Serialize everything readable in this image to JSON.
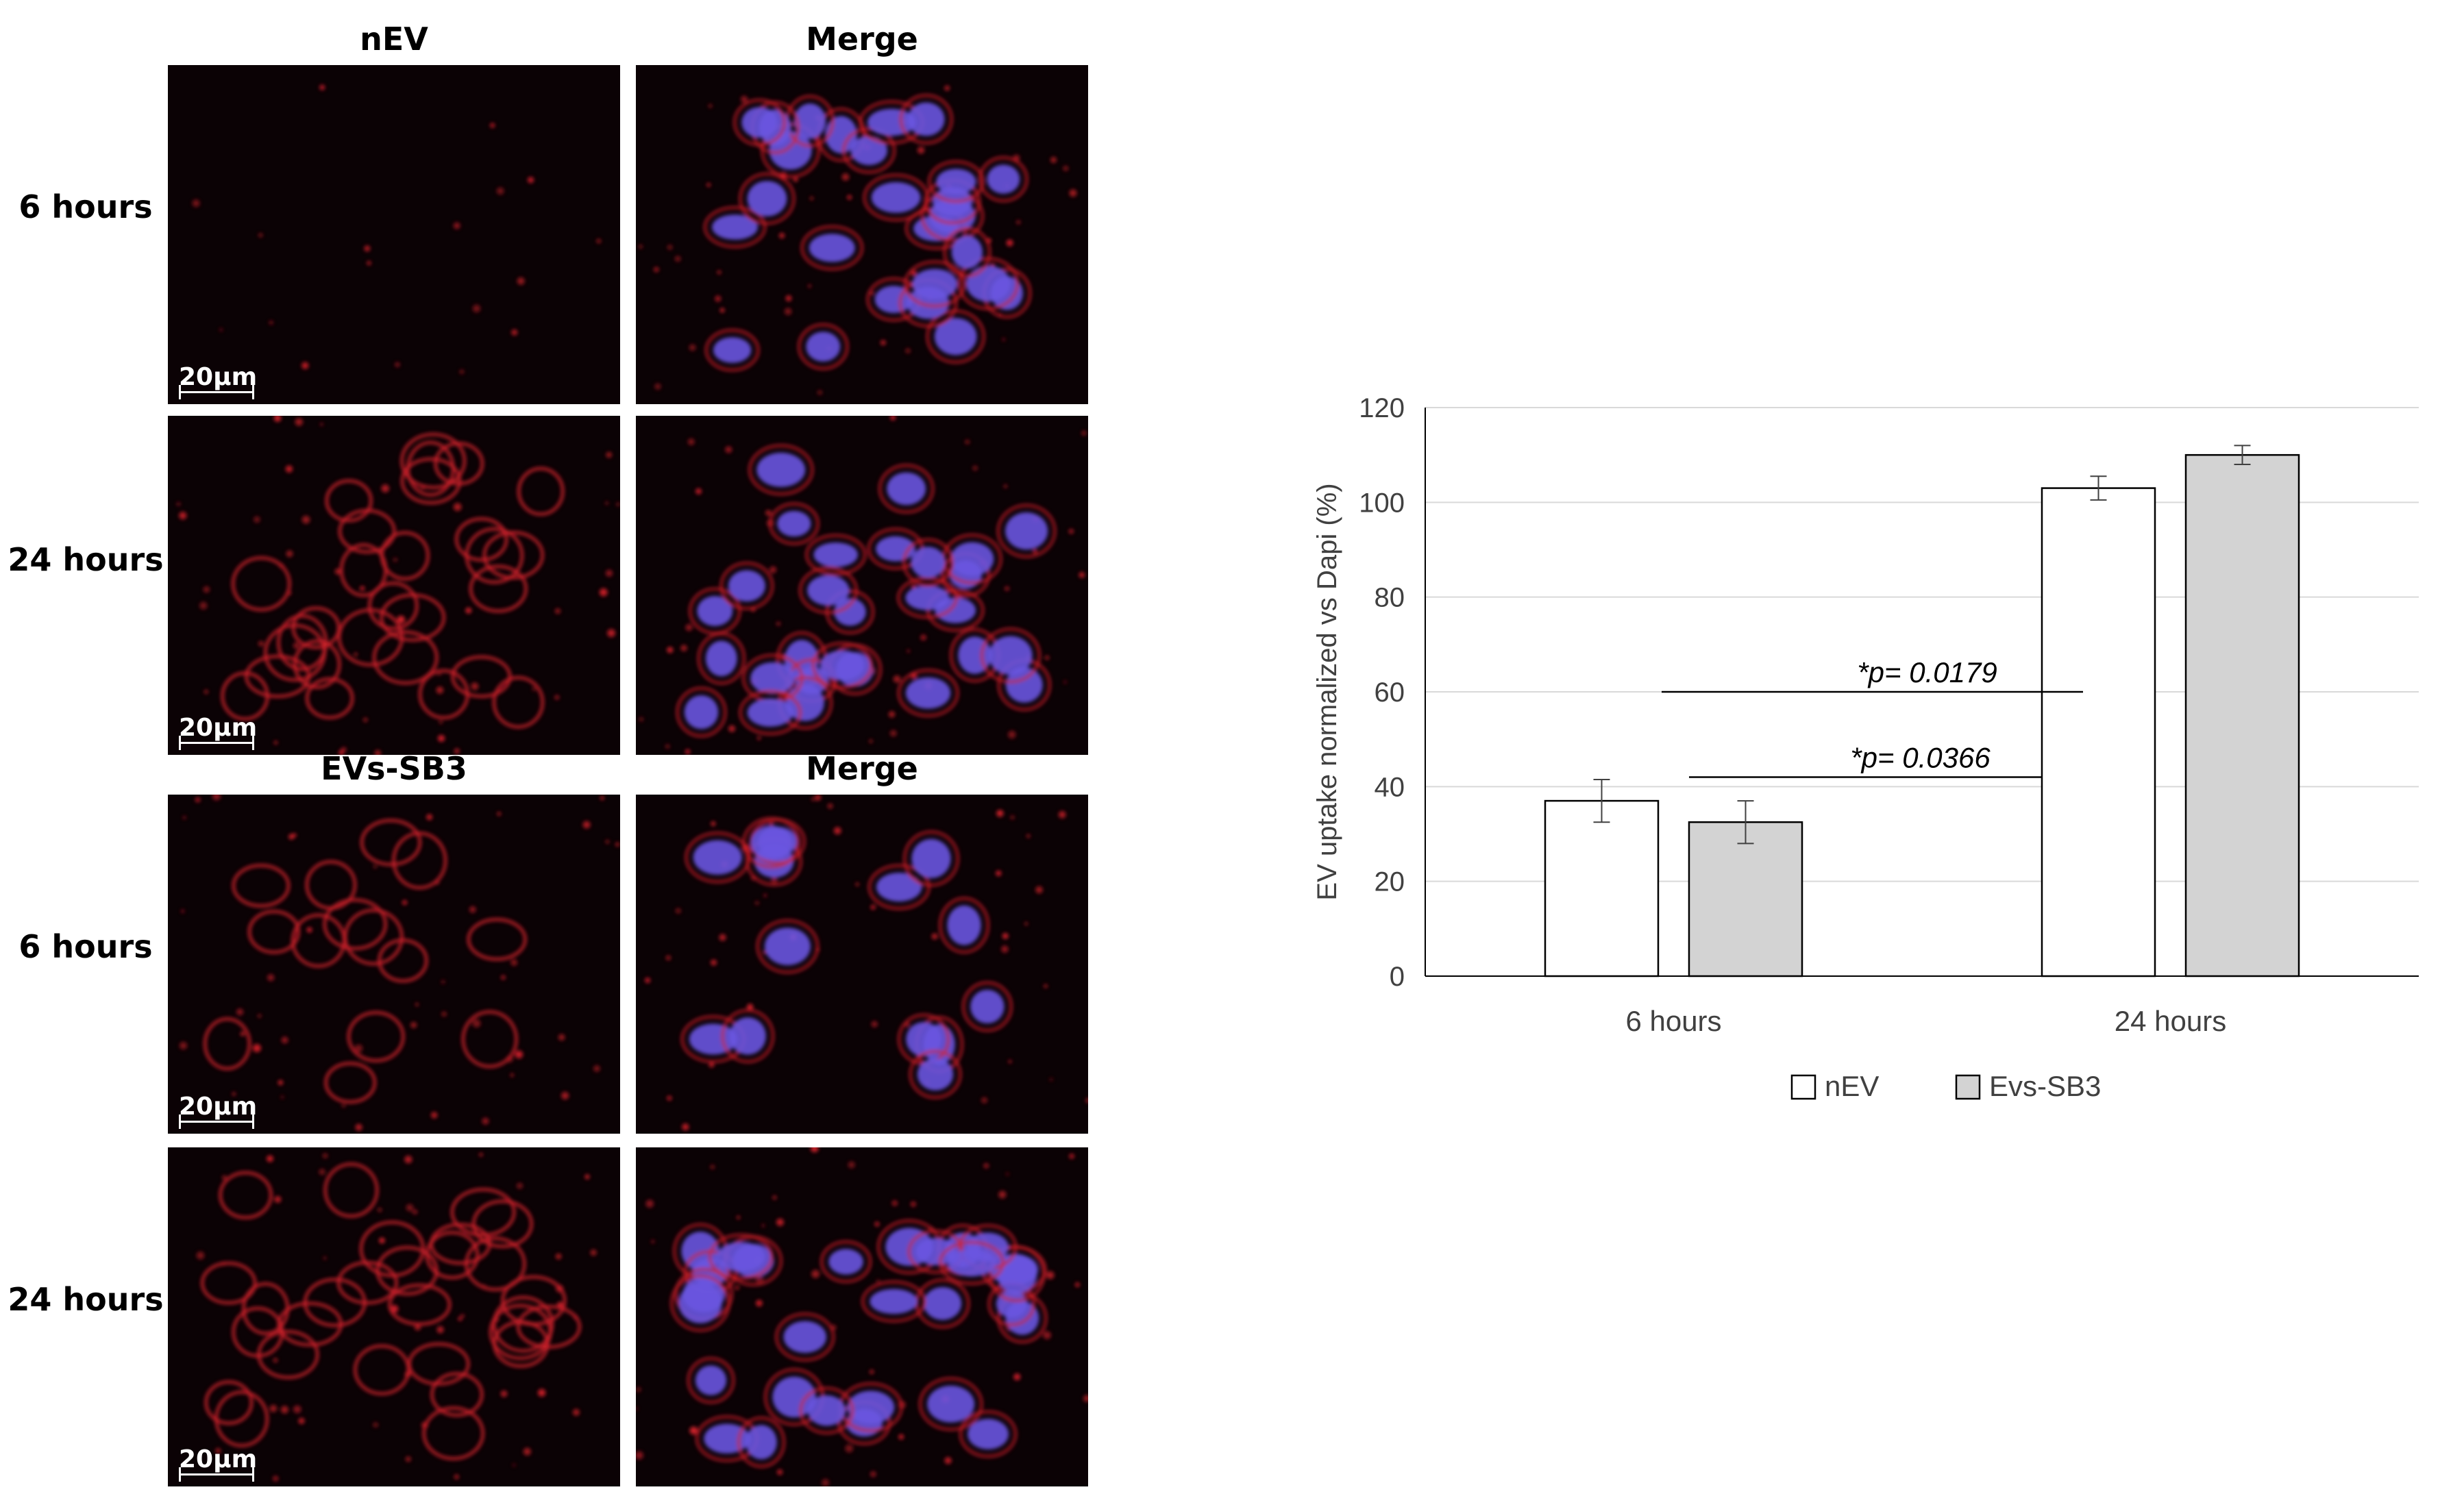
{
  "micrographs": {
    "group1": {
      "col1_title": "nEV",
      "col2_title": "Merge"
    },
    "group2": {
      "col1_title": "EVs-SB3",
      "col2_title": "Merge"
    },
    "rows": [
      "6 hours",
      "24 hours",
      "6 hours",
      "24 hours"
    ],
    "scale_bar": "20µm",
    "colors": {
      "background": "#0b0205",
      "membrane": "#d0202a",
      "nuclei": "#6a55e0"
    }
  },
  "chart_data": {
    "type": "bar",
    "categories": [
      "6 hours",
      "24 hours"
    ],
    "series": [
      {
        "name": "nEV",
        "values": [
          37,
          103
        ],
        "errors": [
          4.5,
          2.5
        ],
        "color": "#ffffff"
      },
      {
        "name": "Evs-SB3",
        "values": [
          32.5,
          110
        ],
        "errors": [
          4.5,
          2.0
        ],
        "color": "#d3d3d3"
      }
    ],
    "xlabel": "",
    "ylabel": "EV uptake normalized vs Dapi (%)",
    "ylim": [
      0,
      120
    ],
    "yticks": [
      0,
      20,
      40,
      60,
      80,
      100,
      120
    ],
    "grid": true,
    "legend": "bottom",
    "annotations": [
      {
        "text": "*p= 0.0366",
        "y": 42,
        "from": "6 hours",
        "to": "24 hours"
      },
      {
        "text": "*p= 0.0179",
        "y": 60,
        "from": "6 hours",
        "to": "24 hours"
      }
    ]
  }
}
